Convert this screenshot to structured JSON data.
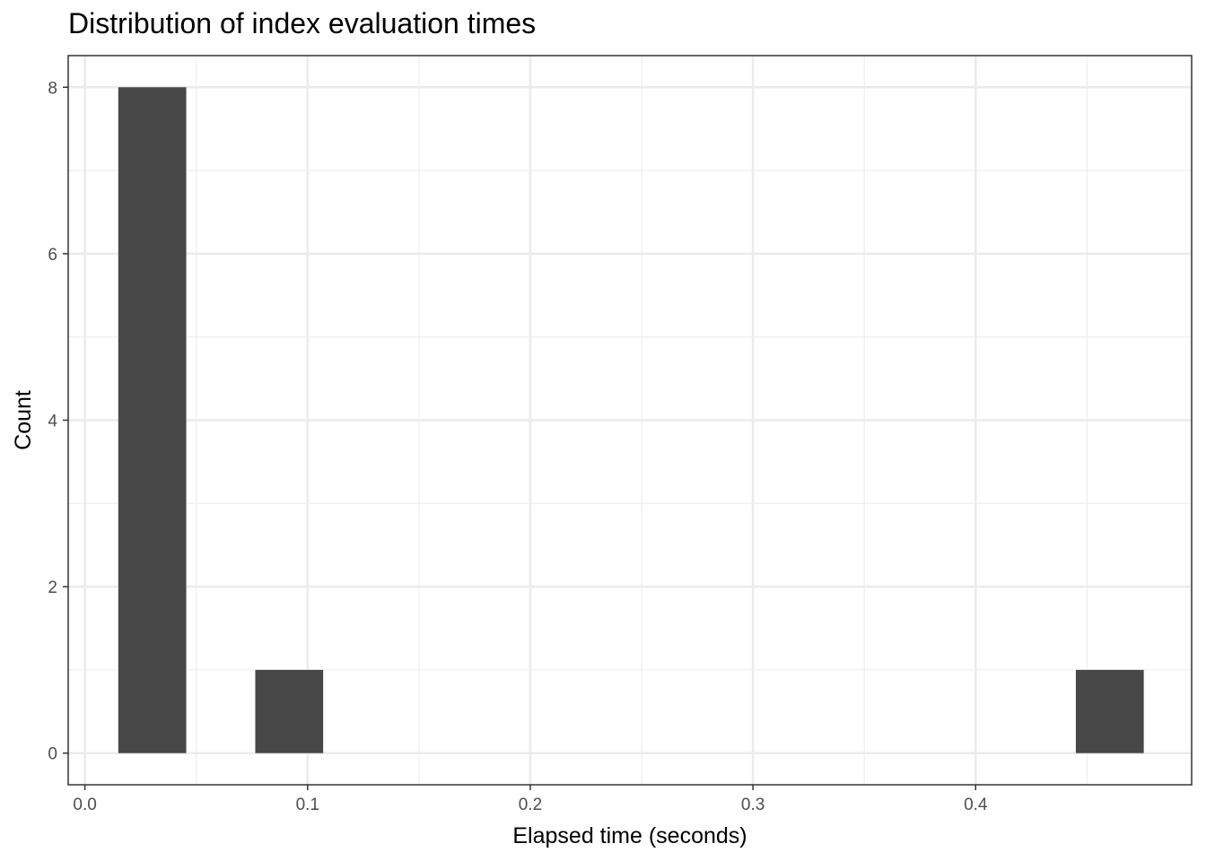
{
  "chart_data": {
    "type": "bar",
    "title": "Distribution of index evaluation times",
    "xlabel": "Elapsed time (seconds)",
    "ylabel": "Count",
    "bins": [
      {
        "x_start": 0.015,
        "x_end": 0.0455,
        "count": 8
      },
      {
        "x_start": 0.0765,
        "x_end": 0.107,
        "count": 1
      },
      {
        "x_start": 0.445,
        "x_end": 0.4755,
        "count": 1
      }
    ],
    "xlim": [
      -0.0075,
      0.497
    ],
    "ylim": [
      -0.38,
      8.38
    ],
    "x_ticks": [
      {
        "value": 0.0,
        "label": "0.0"
      },
      {
        "value": 0.1,
        "label": "0.1"
      },
      {
        "value": 0.2,
        "label": "0.2"
      },
      {
        "value": 0.3,
        "label": "0.3"
      },
      {
        "value": 0.4,
        "label": "0.4"
      }
    ],
    "y_ticks": [
      {
        "value": 0,
        "label": "0"
      },
      {
        "value": 2,
        "label": "2"
      },
      {
        "value": 4,
        "label": "4"
      },
      {
        "value": 6,
        "label": "6"
      },
      {
        "value": 8,
        "label": "8"
      }
    ],
    "grid": true,
    "bar_color": "#474747",
    "grid_color": "#ebebeb",
    "panel_border_color": "#333333"
  }
}
